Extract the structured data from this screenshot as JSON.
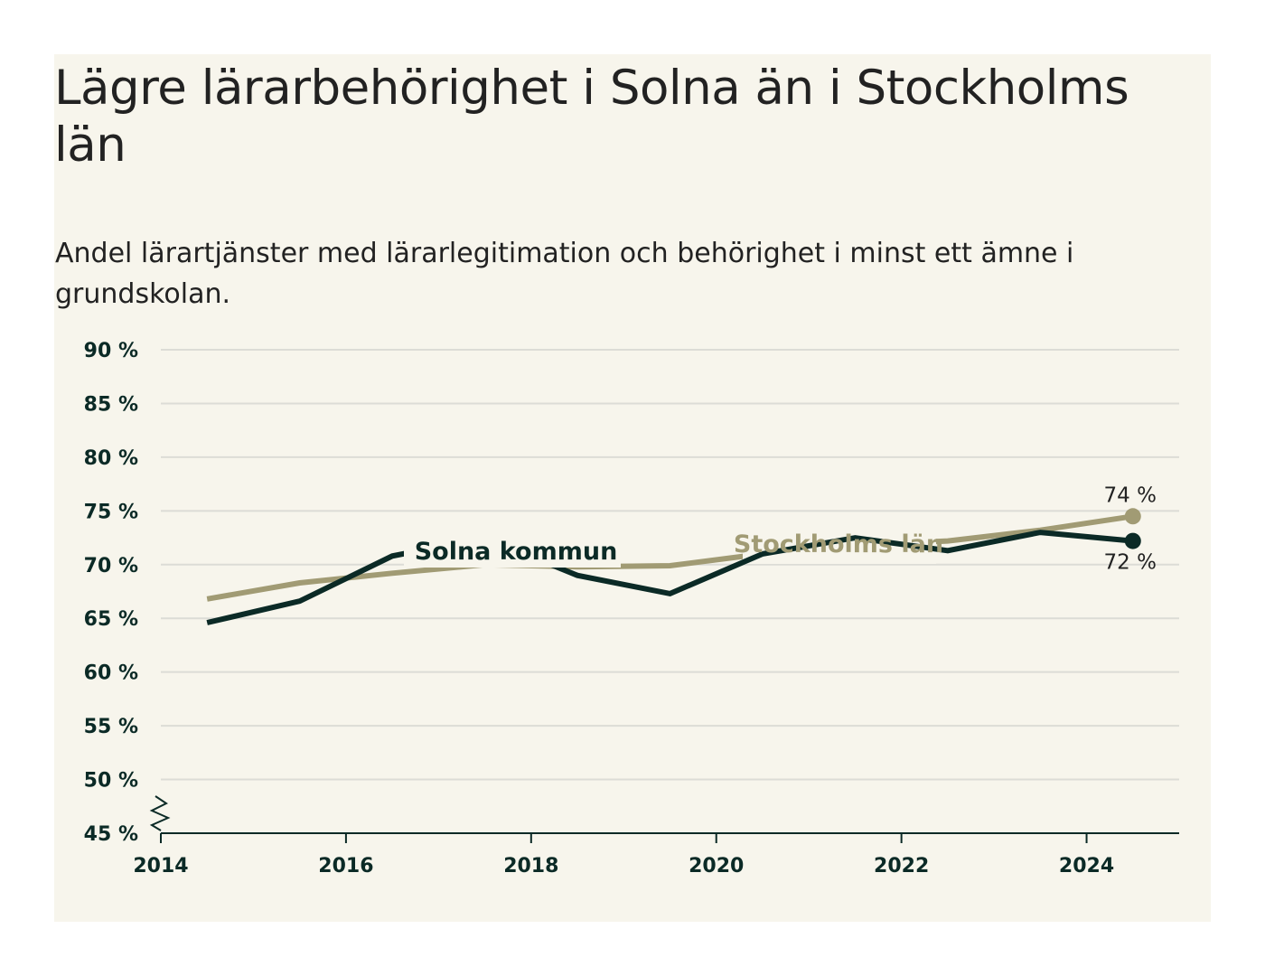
{
  "title": "Lägre lärarbehörighet i Solna än i Stockholms län",
  "subtitle": "Andel lärartjänster med lärarlegitimation och behörighet i minst ett ämne i grundskolan.",
  "colors": {
    "background": "#f7f5ec",
    "solna": "#0b2a26",
    "stockholm": "#a19b74",
    "grid": "#dcdcd6",
    "axis": "#0b2a26"
  },
  "chart_data": {
    "type": "line",
    "ylim": [
      45,
      90
    ],
    "xlim": [
      2014,
      2025
    ],
    "y_ticks": [
      45,
      50,
      55,
      60,
      65,
      70,
      75,
      80,
      85,
      90
    ],
    "y_tick_labels": [
      "45 %",
      "50 %",
      "55 %",
      "60 %",
      "65 %",
      "70 %",
      "75 %",
      "80 %",
      "85 %",
      "90 %"
    ],
    "x_ticks": [
      2014,
      2016,
      2018,
      2020,
      2022,
      2024
    ],
    "x_tick_labels": [
      "2014",
      "2016",
      "2018",
      "2020",
      "2022",
      "2024"
    ],
    "grid": "horizontal",
    "series": [
      {
        "name": "Stockholms län",
        "x": [
          2014.5,
          2015.5,
          2016.5,
          2017.5,
          2018.5,
          2019.5,
          2020.5,
          2021.5,
          2022.5,
          2023.5,
          2024.5
        ],
        "values": [
          66.8,
          68.3,
          69.2,
          70.0,
          69.8,
          69.9,
          71.0,
          71.8,
          72.2,
          73.2,
          74.5
        ],
        "end_label": "74 %"
      },
      {
        "name": "Solna kommun",
        "x": [
          2014.5,
          2015.5,
          2016.5,
          2017.5,
          2018.5,
          2019.5,
          2020.5,
          2021.5,
          2022.5,
          2023.5,
          2024.5
        ],
        "values": [
          64.6,
          66.6,
          70.8,
          72.5,
          69.0,
          67.3,
          71.0,
          72.5,
          71.3,
          73.0,
          72.2
        ],
        "end_label": "72 %"
      }
    ]
  }
}
